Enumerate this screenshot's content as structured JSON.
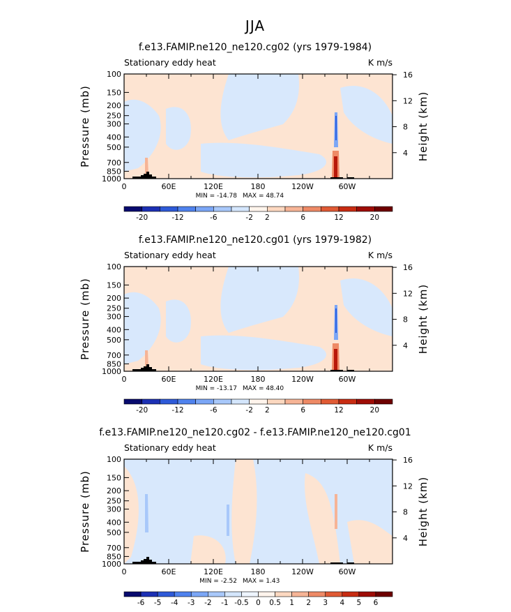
{
  "title": "JJA",
  "colors": {
    "positive_light": "#fde4d2",
    "negative_light": "#d8e8fc",
    "positive_strong": "#b8180a",
    "negative_strong": "#2a5ee0",
    "terrain": "#000000"
  },
  "chart_data": [
    {
      "type": "heatmap",
      "title": "f.e13.FAMIP.ne120_ne120.cg02 (yrs 1979-1984)",
      "left_label": "Stationary eddy heat",
      "units": "K m/s",
      "ylabel": "Pressure (mb)",
      "ylabel_right": "Height (km)",
      "y_ticks": [
        "100",
        "150",
        "200",
        "250",
        "300",
        "400",
        "500",
        "700",
        "850",
        "1000"
      ],
      "y_right_ticks": [
        "16",
        "12",
        "8",
        "4"
      ],
      "x_ticks": [
        "0",
        "60E",
        "120E",
        "180",
        "120W",
        "60W"
      ],
      "min_text": "MIN = -14.78",
      "max_text": "MAX = 48.74",
      "min": -14.78,
      "max": 48.74,
      "colorbar_ticks": [
        "-20",
        "-12",
        "-6",
        "-2",
        "2",
        "6",
        "12",
        "20"
      ],
      "colorbar_colors": [
        "#080a6e",
        "#1c30b4",
        "#2e5ad8",
        "#4f82ee",
        "#7ba6f6",
        "#a8c8fa",
        "#d4e6fc",
        "#fff4ec",
        "#fcd8c0",
        "#f6b496",
        "#ee8a66",
        "#e05a34",
        "#c82c12",
        "#9e0c06",
        "#6e0000"
      ]
    },
    {
      "type": "heatmap",
      "title": "f.e13.FAMIP.ne120_ne120.cg01 (yrs 1979-1982)",
      "left_label": "Stationary eddy heat",
      "units": "K m/s",
      "ylabel": "Pressure (mb)",
      "ylabel_right": "Height (km)",
      "y_ticks": [
        "100",
        "150",
        "200",
        "250",
        "300",
        "400",
        "500",
        "700",
        "850",
        "1000"
      ],
      "y_right_ticks": [
        "16",
        "12",
        "8",
        "4"
      ],
      "x_ticks": [
        "0",
        "60E",
        "120E",
        "180",
        "120W",
        "60W"
      ],
      "min_text": "MIN = -13.17",
      "max_text": "MAX = 48.40",
      "min": -13.17,
      "max": 48.4,
      "colorbar_ticks": [
        "-20",
        "-12",
        "-6",
        "-2",
        "2",
        "6",
        "12",
        "20"
      ],
      "colorbar_colors": [
        "#080a6e",
        "#1c30b4",
        "#2e5ad8",
        "#4f82ee",
        "#7ba6f6",
        "#a8c8fa",
        "#d4e6fc",
        "#fff4ec",
        "#fcd8c0",
        "#f6b496",
        "#ee8a66",
        "#e05a34",
        "#c82c12",
        "#9e0c06",
        "#6e0000"
      ]
    },
    {
      "type": "heatmap",
      "title": "f.e13.FAMIP.ne120_ne120.cg02 - f.e13.FAMIP.ne120_ne120.cg01",
      "left_label": "Stationary eddy heat",
      "units": "K m/s",
      "ylabel": "Pressure (mb)",
      "ylabel_right": "Height (km)",
      "y_ticks": [
        "100",
        "150",
        "200",
        "250",
        "300",
        "400",
        "500",
        "700",
        "850",
        "1000"
      ],
      "y_right_ticks": [
        "16",
        "12",
        "8",
        "4"
      ],
      "x_ticks": [
        "0",
        "60E",
        "120E",
        "180",
        "120W",
        "60W"
      ],
      "min_text": "MIN = -2.52",
      "max_text": "MAX = 1.43",
      "min": -2.52,
      "max": 1.43,
      "colorbar_ticks": [
        "-6",
        "-5",
        "-4",
        "-3",
        "-2",
        "-1",
        "-0.5",
        "0",
        "0.5",
        "1",
        "2",
        "3",
        "4",
        "5",
        "6"
      ],
      "colorbar_colors": [
        "#080a6e",
        "#1c30b4",
        "#2e5ad8",
        "#4f82ee",
        "#7ba6f6",
        "#a8c8fa",
        "#d4e6fc",
        "#eef5fe",
        "#fff4ec",
        "#fcd8c0",
        "#f6b496",
        "#ee8a66",
        "#e05a34",
        "#c82c12",
        "#9e0c06",
        "#6e0000"
      ]
    }
  ]
}
